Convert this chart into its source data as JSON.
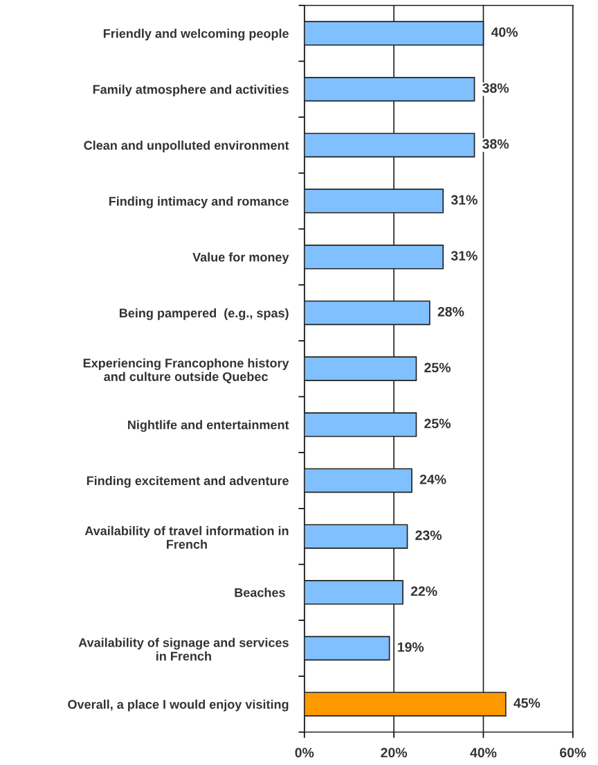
{
  "chart_data": {
    "type": "bar",
    "orientation": "horizontal",
    "categories": [
      "Friendly and welcoming people",
      "Family atmosphere and activities",
      "Clean and unpolluted environment",
      "Finding intimacy and romance",
      "Value for money",
      "Being pampered  (e.g., spas)",
      "Experiencing Francophone history\nand culture outside Quebec",
      "Nightlife and entertainment",
      "Finding excitement and adventure",
      "Availability of travel information in\nFrench",
      "Beaches ",
      "Availability of signage and services\nin French",
      "Overall, a place I would enjoy visiting"
    ],
    "values": [
      40,
      38,
      38,
      31,
      31,
      28,
      25,
      25,
      24,
      23,
      22,
      19,
      45
    ],
    "colors": [
      "#80c0ff",
      "#80c0ff",
      "#80c0ff",
      "#80c0ff",
      "#80c0ff",
      "#80c0ff",
      "#80c0ff",
      "#80c0ff",
      "#80c0ff",
      "#80c0ff",
      "#80c0ff",
      "#80c0ff",
      "#ff9900"
    ],
    "value_labels": [
      "40%",
      "38%",
      "38%",
      "31%",
      "31%",
      "28%",
      "25%",
      "25%",
      "24%",
      "23%",
      "22%",
      "19%",
      "45%"
    ],
    "xlim": [
      0,
      60
    ],
    "xticks": [
      {
        "value": 0,
        "label": "0%"
      },
      {
        "value": 20,
        "label": "20%"
      },
      {
        "value": 40,
        "label": "40%"
      },
      {
        "value": 60,
        "label": "60%"
      }
    ],
    "grid": "x"
  }
}
